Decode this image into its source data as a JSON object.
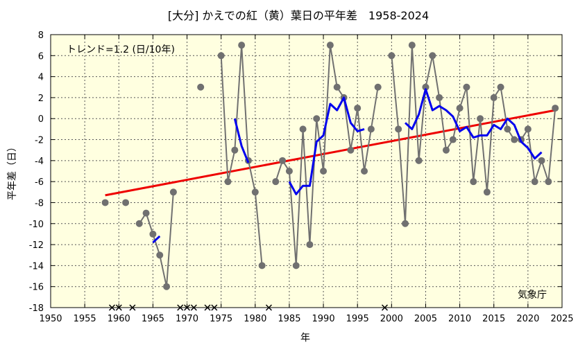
{
  "chart_data": {
    "type": "line",
    "title": "[大分] かえでの紅（黄）葉日の平年差　1958-2024",
    "xlabel": "年",
    "ylabel": "平年差（日）",
    "xlim": [
      1950,
      2025
    ],
    "ylim": [
      -18,
      8
    ],
    "x_ticks": [
      1950,
      1955,
      1960,
      1965,
      1970,
      1975,
      1980,
      1985,
      1990,
      1995,
      2000,
      2005,
      2010,
      2015,
      2020,
      2025
    ],
    "y_ticks": [
      -18,
      -16,
      -14,
      -12,
      -10,
      -8,
      -6,
      -4,
      -2,
      0,
      2,
      4,
      6,
      8
    ],
    "grid": true,
    "trend_label": "トレンド=1.2 (日/10年)",
    "credit": "気象庁",
    "annual_series": {
      "color": "#707070",
      "points": [
        [
          1958,
          -8
        ],
        [
          1959,
          null
        ],
        [
          1960,
          null
        ],
        [
          1961,
          -8
        ],
        [
          1962,
          null
        ],
        [
          1963,
          -10
        ],
        [
          1964,
          -9
        ],
        [
          1965,
          -11
        ],
        [
          1966,
          -13
        ],
        [
          1967,
          -16
        ],
        [
          1968,
          -7
        ],
        [
          1969,
          null
        ],
        [
          1970,
          null
        ],
        [
          1971,
          null
        ],
        [
          1972,
          3
        ],
        [
          1973,
          null
        ],
        [
          1974,
          null
        ],
        [
          1975,
          6
        ],
        [
          1976,
          -6
        ],
        [
          1977,
          -3
        ],
        [
          1978,
          7
        ],
        [
          1979,
          -4
        ],
        [
          1980,
          -7
        ],
        [
          1981,
          -14
        ],
        [
          1982,
          null
        ],
        [
          1983,
          -6
        ],
        [
          1984,
          -4
        ],
        [
          1985,
          -5
        ],
        [
          1986,
          -14
        ],
        [
          1987,
          -1
        ],
        [
          1988,
          -12
        ],
        [
          1989,
          0
        ],
        [
          1990,
          -5
        ],
        [
          1991,
          7
        ],
        [
          1992,
          3
        ],
        [
          1993,
          2
        ],
        [
          1994,
          -3
        ],
        [
          1995,
          1
        ],
        [
          1996,
          -5
        ],
        [
          1997,
          -1
        ],
        [
          1998,
          3
        ],
        [
          1999,
          null
        ],
        [
          2000,
          6
        ],
        [
          2001,
          -1
        ],
        [
          2002,
          -10
        ],
        [
          2003,
          7
        ],
        [
          2004,
          -4
        ],
        [
          2005,
          3
        ],
        [
          2006,
          6
        ],
        [
          2007,
          2
        ],
        [
          2008,
          -3
        ],
        [
          2009,
          -2
        ],
        [
          2010,
          1
        ],
        [
          2011,
          3
        ],
        [
          2012,
          -6
        ],
        [
          2013,
          0
        ],
        [
          2014,
          -7
        ],
        [
          2015,
          2
        ],
        [
          2016,
          3
        ],
        [
          2017,
          -1
        ],
        [
          2018,
          -2
        ],
        [
          2019,
          -2
        ],
        [
          2020,
          -1
        ],
        [
          2021,
          -6
        ],
        [
          2022,
          -4
        ],
        [
          2023,
          -6
        ],
        [
          2024,
          1
        ]
      ]
    },
    "moving_average": {
      "color": "#0000ee",
      "segments": [
        [
          [
            1965,
            -11.8
          ],
          [
            1966,
            -11.2
          ]
        ],
        [
          [
            1977,
            0
          ],
          [
            1978,
            -2.6
          ],
          [
            1979,
            -4.2
          ]
        ],
        [
          [
            1985,
            -6
          ],
          [
            1986,
            -7.2
          ],
          [
            1987,
            -6.4
          ],
          [
            1988,
            -6.4
          ],
          [
            1989,
            -2.2
          ],
          [
            1990,
            -1.6
          ],
          [
            1991,
            1.4
          ],
          [
            1992,
            0.8
          ],
          [
            1993,
            2
          ],
          [
            1994,
            -0.4
          ],
          [
            1995,
            -1.2
          ],
          [
            1996,
            -1
          ]
        ],
        [
          [
            2002,
            -0.4
          ],
          [
            2003,
            -1
          ],
          [
            2004,
            0.4
          ],
          [
            2005,
            2.8
          ],
          [
            2006,
            0.8
          ],
          [
            2007,
            1.2
          ],
          [
            2008,
            0.8
          ],
          [
            2009,
            0.2
          ],
          [
            2010,
            -1.2
          ],
          [
            2011,
            -0.8
          ],
          [
            2012,
            -1.8
          ],
          [
            2013,
            -1.6
          ],
          [
            2014,
            -1.6
          ],
          [
            2015,
            -0.6
          ],
          [
            2016,
            -1
          ],
          [
            2017,
            0
          ],
          [
            2018,
            -0.6
          ],
          [
            2019,
            -2.2
          ],
          [
            2020,
            -2.8
          ],
          [
            2021,
            -3.8
          ],
          [
            2022,
            -3.2
          ]
        ]
      ]
    },
    "trend_line": {
      "color": "#ee0000",
      "points": [
        [
          1958,
          -7.3
        ],
        [
          2024,
          0.8
        ]
      ]
    },
    "missing_years": [
      1959,
      1960,
      1962,
      1969,
      1970,
      1971,
      1973,
      1974,
      1982,
      1999
    ]
  }
}
